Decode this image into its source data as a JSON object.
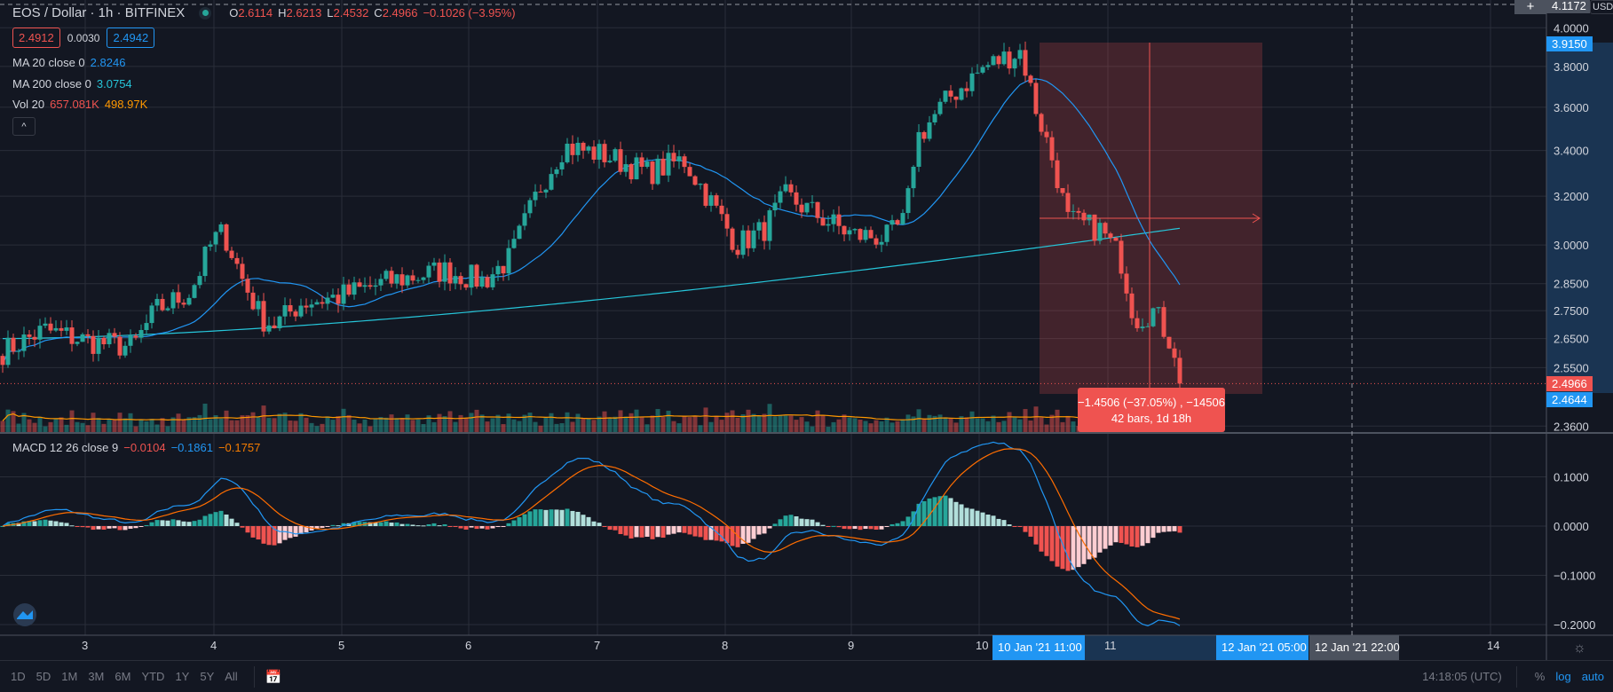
{
  "header": {
    "symbol": "EOS / Dollar · 1h · BITFINEX",
    "o_label": "O",
    "o": "2.6114",
    "h_label": "H",
    "h": "2.6213",
    "l_label": "L",
    "l": "2.4532",
    "c_label": "C",
    "c": "2.4966",
    "change": "−0.1026 (−3.95%)"
  },
  "quote": {
    "bid": "2.4912",
    "spread": "0.0030",
    "ask": "2.4942"
  },
  "indicators": {
    "ma20": {
      "label": "MA 20 close 0",
      "value": "2.8246"
    },
    "ma200": {
      "label": "MA 200 close 0",
      "value": "3.0754"
    },
    "vol": {
      "label": "Vol 20",
      "value1": "657.081K",
      "value2": "498.97K"
    },
    "macd": {
      "label": "MACD 12 26 close 9",
      "hist": "−0.0104",
      "macd": "−0.1861",
      "signal": "−0.1757"
    }
  },
  "collapse_icon": "chevron-up-icon",
  "price_axis": {
    "currency": "USD",
    "ticks": [
      "4.0000",
      "3.8000",
      "3.6000",
      "3.4000",
      "3.2000",
      "3.0000",
      "2.8500",
      "2.7500",
      "2.6500",
      "2.5500",
      "2.3600"
    ],
    "top_label": "4.1172",
    "range_high": "3.9150",
    "last_price": "2.4966",
    "range_low": "2.4644"
  },
  "macd_axis": {
    "ticks": [
      "0.1000",
      "0.0000",
      "−0.1000",
      "−0.2000"
    ]
  },
  "time_axis": {
    "labels": [
      "3",
      "4",
      "5",
      "6",
      "7",
      "8",
      "9",
      "10",
      "11",
      "14"
    ],
    "range_start": "10 Jan '21   11:00",
    "range_end": "12 Jan '21   05:00",
    "crosshair": "12 Jan '21   22:00"
  },
  "measure": {
    "line1": "−1.4506 (−37.05%) , −14506",
    "line2": "42 bars, 1d 18h"
  },
  "toolbar": {
    "ranges": [
      "1D",
      "5D",
      "1M",
      "3M",
      "6M",
      "YTD",
      "1Y",
      "5Y",
      "All"
    ],
    "clock": "14:18:05 (UTC)",
    "percent": "%",
    "log": "log",
    "auto": "auto"
  },
  "colors": {
    "up": "#26a69a",
    "down": "#ef5350",
    "ma20": "#2196f3",
    "ma200": "#26c6da",
    "volma": "#ff9800",
    "macd": "#2196f3",
    "signal": "#ff6d00",
    "bg": "#131722",
    "grid": "#2a2e39",
    "accent": "#2196f3"
  },
  "price_path": [
    [
      0,
      2.6
    ],
    [
      50,
      2.68
    ],
    [
      100,
      2.64
    ],
    [
      150,
      2.62
    ],
    [
      175,
      2.75
    ],
    [
      215,
      2.82
    ],
    [
      240,
      3.02
    ],
    [
      252,
      3.05
    ],
    [
      275,
      2.85
    ],
    [
      295,
      2.72
    ],
    [
      310,
      2.7
    ],
    [
      340,
      2.78
    ],
    [
      380,
      2.8
    ],
    [
      440,
      2.86
    ],
    [
      500,
      2.9
    ],
    [
      545,
      2.86
    ],
    [
      575,
      2.95
    ],
    [
      610,
      3.25
    ],
    [
      635,
      3.42
    ],
    [
      680,
      3.38
    ],
    [
      730,
      3.3
    ],
    [
      770,
      3.36
    ],
    [
      800,
      3.18
    ],
    [
      830,
      3.0
    ],
    [
      860,
      3.06
    ],
    [
      885,
      3.2
    ],
    [
      930,
      3.1
    ],
    [
      960,
      3.04
    ],
    [
      1000,
      3.03
    ],
    [
      1020,
      3.1
    ],
    [
      1032,
      3.45
    ],
    [
      1070,
      3.65
    ],
    [
      1110,
      3.8
    ],
    [
      1150,
      3.88
    ],
    [
      1165,
      3.62
    ],
    [
      1190,
      3.3
    ],
    [
      1202,
      3.1
    ],
    [
      1240,
      3.06
    ],
    [
      1262,
      2.95
    ],
    [
      1278,
      2.72
    ],
    [
      1300,
      2.75
    ],
    [
      1322,
      2.62
    ],
    [
      1335,
      2.497
    ]
  ]
}
